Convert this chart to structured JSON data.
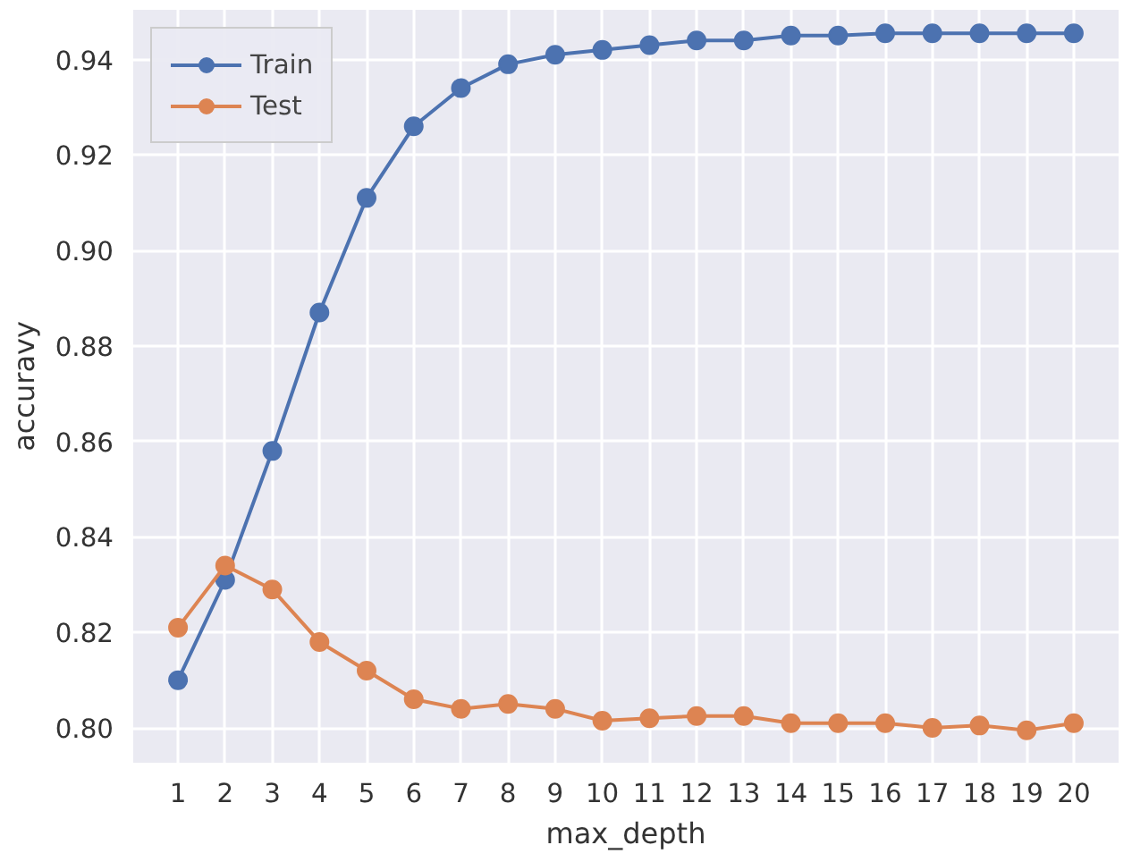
{
  "chart_data": {
    "type": "line",
    "xlabel": "max_depth",
    "ylabel": "accuravy",
    "x": [
      1,
      2,
      3,
      4,
      5,
      6,
      7,
      8,
      9,
      10,
      11,
      12,
      13,
      14,
      15,
      16,
      17,
      18,
      19,
      20
    ],
    "series": [
      {
        "name": "Train",
        "color": "#4c72b0",
        "values": [
          0.81,
          0.831,
          0.858,
          0.887,
          0.911,
          0.926,
          0.934,
          0.939,
          0.941,
          0.942,
          0.943,
          0.944,
          0.944,
          0.945,
          0.945,
          0.9455,
          0.9455,
          0.9455,
          0.9455,
          0.9455
        ]
      },
      {
        "name": "Test",
        "color": "#dd8452",
        "values": [
          0.821,
          0.834,
          0.829,
          0.818,
          0.812,
          0.806,
          0.804,
          0.805,
          0.804,
          0.8015,
          0.802,
          0.8025,
          0.8025,
          0.801,
          0.801,
          0.801,
          0.8,
          0.8005,
          0.7995,
          0.801
        ]
      }
    ],
    "xlim": [
      0.05,
      20.95
    ],
    "ylim": [
      0.7927,
      0.9504
    ],
    "xticks": [
      1,
      2,
      3,
      4,
      5,
      6,
      7,
      8,
      9,
      10,
      11,
      12,
      13,
      14,
      15,
      16,
      17,
      18,
      19,
      20
    ],
    "yticks": [
      {
        "value": 0.8,
        "label": "0.80"
      },
      {
        "value": 0.82,
        "label": "0.82"
      },
      {
        "value": 0.84,
        "label": "0.84"
      },
      {
        "value": 0.86,
        "label": "0.86"
      },
      {
        "value": 0.88,
        "label": "0.88"
      },
      {
        "value": 0.9,
        "label": "0.90"
      },
      {
        "value": 0.92,
        "label": "0.92"
      },
      {
        "value": 0.94,
        "label": "0.94"
      }
    ],
    "grid": true,
    "legend": "top left",
    "marker": "circle",
    "line_style": "solid"
  }
}
